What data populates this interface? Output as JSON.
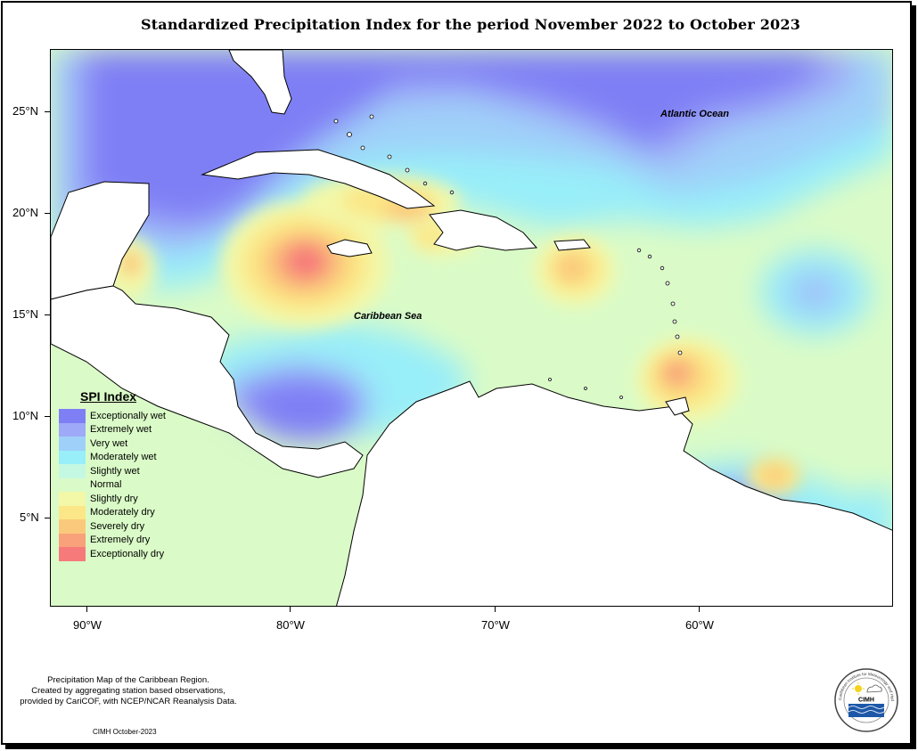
{
  "title": "Standardized Precipitation Index for the period November 2022 to October 2023",
  "axes": {
    "y_ticks": [
      "25°N",
      "20°N",
      "15°N",
      "10°N",
      "5°N"
    ],
    "x_ticks": [
      "90°W",
      "80°W",
      "70°W",
      "60°W"
    ]
  },
  "map_labels": {
    "atlantic": "Atlantic Ocean",
    "caribbean": "Caribbean Sea"
  },
  "legend": {
    "title": "SPI Index",
    "items": [
      {
        "label": "Exceptionally wet",
        "color": "#7f7ff5"
      },
      {
        "label": "Extremely wet",
        "color": "#9eaaf7"
      },
      {
        "label": "Very wet",
        "color": "#9fd0f9"
      },
      {
        "label": "Moderately wet",
        "color": "#98eef9"
      },
      {
        "label": "Slightly wet",
        "color": "#c4f8e3"
      },
      {
        "label": "Normal",
        "color": "#dafbc7"
      },
      {
        "label": "Slightly dry",
        "color": "#f3f8a8"
      },
      {
        "label": "Moderately dry",
        "color": "#fbe787"
      },
      {
        "label": "Severely dry",
        "color": "#fbc97b"
      },
      {
        "label": "Extremely dry",
        "color": "#f8a17a"
      },
      {
        "label": "Exceptionally dry",
        "color": "#f77a7a"
      }
    ]
  },
  "footnote": {
    "line1": "Precipitation Map of the Caribbean Region.",
    "line2": "Created by aggregating station based observations,",
    "line3": "provided by CariCOF, with NCEP/NCAR Reanalysis Data."
  },
  "credit": "CIMH October-2023",
  "logo": {
    "acronym": "CIMH",
    "ring_text": "Caribbean Institute for Meteorology and Hydrology",
    "icon": "sun-cloud-water-icon"
  }
}
